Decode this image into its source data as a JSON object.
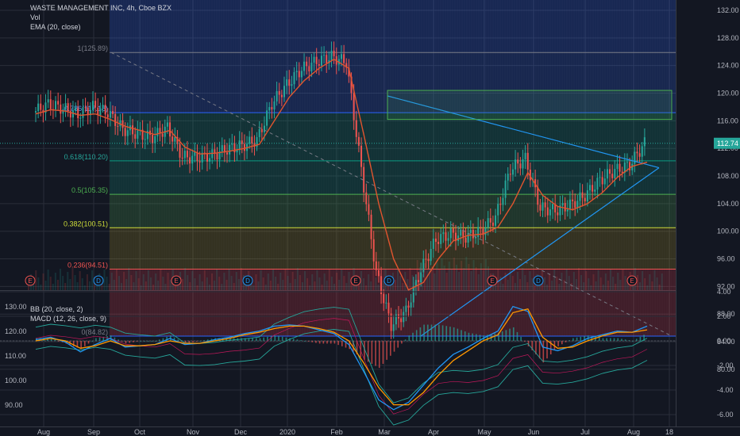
{
  "header": {
    "title": "WASTE MANAGEMENT INC, 4h, Cboe BZX",
    "vol_label": "Vol",
    "ema_label": "EMA (20, close)",
    "bb_label": "BB (20, close, 2)",
    "macd_label": "MACD (12, 26, close, 9)"
  },
  "colors": {
    "background": "#131722",
    "grid": "#2a2e39",
    "price_up": "#26a69a",
    "price_down": "#ef5350",
    "ema": "#e0542e",
    "trendline": "#2196f3",
    "fib_blue": "#2962ff",
    "fib_teal": "#089981",
    "fib_green": "#4caf50",
    "fib_red": "#f23645",
    "target_box": "#4caf50",
    "macd_line": "#2196f3",
    "signal_line": "#ff9800",
    "bb_band": "#26a69a"
  },
  "chart_data": [
    {
      "type": "candlestick",
      "title": "WASTE MANAGEMENT INC, 4h, Cboe BZX",
      "ylim": [
        78,
        134
      ],
      "y_ticks": [
        "132.00",
        "128.00",
        "124.00",
        "120.00",
        "116.00",
        "112.00",
        "108.00",
        "104.00",
        "100.00",
        "96.00",
        "92.00",
        "88.00",
        "84.00",
        "80.00"
      ],
      "last_price": "112.74",
      "x_ticks": [
        "Aug",
        "Sep",
        "Oct",
        "Nov",
        "Dec",
        "2020",
        "Feb",
        "Mar",
        "Apr",
        "May",
        "Jun",
        "Jul",
        "Aug",
        "18"
      ],
      "series": [
        {
          "name": "EMA (20, close)",
          "values": [
            117.0,
            117.6,
            117.4,
            116.8,
            117.0,
            116.2,
            115.2,
            114.6,
            114.0,
            114.6,
            112.2,
            111.2,
            111.3,
            111.6,
            112.0,
            112.6,
            116.0,
            119.4,
            121.8,
            123.6,
            124.9,
            123.6,
            114.0,
            104.0,
            96.0,
            91.5,
            92.6,
            96.0,
            98.6,
            99.4,
            99.6,
            100.6,
            104.0,
            108.5,
            105.2,
            103.6,
            103.1,
            104.0,
            105.6,
            107.8,
            109.4,
            110.0
          ]
        },
        {
          "name": "Close",
          "values": [
            117.2,
            118.4,
            117.8,
            116.9,
            118.0,
            117.2,
            114.8,
            114.1,
            113.6,
            115.0,
            110.8,
            110.6,
            111.0,
            111.9,
            112.4,
            113.2,
            118.5,
            121.2,
            123.5,
            124.6,
            125.3,
            124.5,
            109.0,
            94.0,
            86.4,
            88.4,
            94.4,
            98.8,
            99.6,
            99.2,
            100.0,
            102.0,
            109.0,
            110.5,
            103.4,
            103.0,
            103.8,
            105.2,
            107.4,
            108.8,
            109.6,
            112.74
          ]
        }
      ],
      "fibonacci": [
        {
          "label": "1(125.89)",
          "value": 125.89
        },
        {
          "label": "0.786(117.18)",
          "value": 117.18
        },
        {
          "label": "0.618(110.20)",
          "value": 110.2
        },
        {
          "label": "0.5(105.35)",
          "value": 105.35
        },
        {
          "label": "0.382(100.51)",
          "value": 100.51
        },
        {
          "label": "0.236(94.51)",
          "value": 94.51
        },
        {
          "label": "0(84.82)",
          "value": 84.82
        }
      ],
      "target_zone": [
        116.2,
        120.4
      ],
      "events": [
        "E",
        "D",
        "E",
        "D",
        "E",
        "D",
        "E",
        "D",
        "E"
      ]
    },
    {
      "type": "line",
      "title": "BB (20, close, 2) / MACD (12, 26, close, 9)",
      "left_ticks": [
        "130.00",
        "120.00",
        "110.00",
        "100.00",
        "90.00"
      ],
      "right_ticks": [
        "4.00",
        "2.00",
        "0.00",
        "-2.00",
        "-4.00",
        "-6.00"
      ],
      "series": [
        {
          "name": "MACD",
          "values": [
            0.1,
            0.3,
            -0.1,
            -0.9,
            -0.3,
            0.2,
            -0.5,
            -0.4,
            -0.3,
            0.2,
            -0.3,
            -0.2,
            0.1,
            0.3,
            0.6,
            0.8,
            1.2,
            1.3,
            1.2,
            0.9,
            0.6,
            -0.3,
            -2.5,
            -4.8,
            -5.6,
            -5.0,
            -3.6,
            -2.2,
            -1.1,
            -0.5,
            0.2,
            0.8,
            2.8,
            2.4,
            -0.5,
            -0.8,
            -0.4,
            0.2,
            0.5,
            0.8,
            0.7,
            1.2
          ]
        },
        {
          "name": "Signal",
          "values": [
            0.0,
            0.2,
            0.0,
            -0.6,
            -0.4,
            0.0,
            -0.4,
            -0.4,
            -0.3,
            0.0,
            -0.2,
            -0.2,
            0.0,
            0.2,
            0.5,
            0.7,
            1.0,
            1.2,
            1.2,
            1.0,
            0.7,
            0.0,
            -1.8,
            -3.8,
            -5.2,
            -5.2,
            -4.2,
            -2.8,
            -1.6,
            -0.8,
            0.0,
            0.5,
            2.3,
            2.6,
            0.3,
            -0.6,
            -0.5,
            0.0,
            0.4,
            0.7,
            0.7,
            0.9
          ]
        }
      ]
    }
  ]
}
